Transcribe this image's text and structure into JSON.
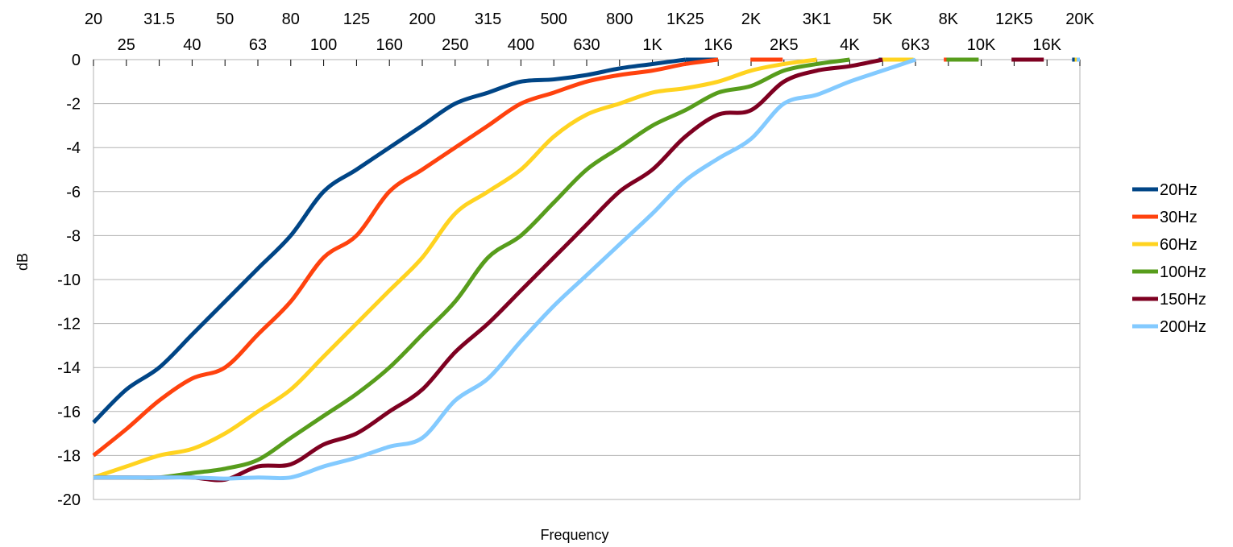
{
  "chart_data": {
    "type": "line",
    "title": "",
    "xlabel": "Frequency",
    "ylabel": "dB",
    "ylim": [
      -20,
      0
    ],
    "yticks": [
      0,
      -2,
      -4,
      -6,
      -8,
      -10,
      -12,
      -14,
      -16,
      -18,
      -20
    ],
    "grid": true,
    "legend_position": "right",
    "categories": [
      "20",
      "25",
      "31.5",
      "40",
      "50",
      "63",
      "80",
      "100",
      "125",
      "160",
      "200",
      "250",
      "315",
      "400",
      "500",
      "630",
      "800",
      "1K",
      "1K25",
      "1K6",
      "2K",
      "2K5",
      "3K1",
      "4K",
      "5K",
      "6K3",
      "8K",
      "10K",
      "12K5",
      "16K",
      "20K"
    ],
    "series": [
      {
        "name": "20Hz",
        "color": "#004586",
        "values": [
          -16.5,
          -15,
          -14,
          -12.5,
          -11,
          -9.5,
          -8,
          -6,
          -5,
          -4,
          -3,
          -2,
          -1.5,
          -1,
          -0.9,
          -0.7,
          -0.4,
          -0.2,
          0,
          0,
          0,
          0,
          0,
          0,
          0,
          0,
          0,
          0,
          0,
          0,
          0
        ]
      },
      {
        "name": "30Hz",
        "color": "#ff420e",
        "values": [
          -18,
          -16.8,
          -15.5,
          -14.5,
          -14,
          -12.5,
          -11,
          -9,
          -8,
          -6,
          -5,
          -4,
          -3,
          -2,
          -1.5,
          -1,
          -0.7,
          -0.5,
          -0.2,
          0,
          0,
          0,
          0,
          0,
          0,
          0,
          0,
          0,
          0,
          0,
          0
        ]
      },
      {
        "name": "60Hz",
        "color": "#ffd320",
        "values": [
          -19,
          -18.5,
          -18,
          -17.7,
          -17,
          -16,
          -15,
          -13.5,
          -12,
          -10.5,
          -9,
          -7,
          -6,
          -5,
          -3.5,
          -2.5,
          -2,
          -1.5,
          -1.3,
          -1,
          -0.5,
          -0.2,
          0,
          0,
          0,
          0,
          0,
          0,
          0,
          0,
          0
        ]
      },
      {
        "name": "100Hz",
        "color": "#579d1c",
        "values": [
          -19,
          -19,
          -19,
          -18.8,
          -18.6,
          -18.2,
          -17.2,
          -16.2,
          -15.2,
          -14,
          -12.5,
          -11,
          -9,
          -8,
          -6.5,
          -5,
          -4,
          -3,
          -2.3,
          -1.5,
          -1.2,
          -0.5,
          -0.2,
          0,
          0,
          0,
          0,
          0,
          0,
          0,
          0
        ]
      },
      {
        "name": "150Hz",
        "color": "#7e0021",
        "values": [
          -19,
          -19,
          -19,
          -19,
          -19.1,
          -18.5,
          -18.4,
          -17.5,
          -17,
          -16,
          -15,
          -13.3,
          -12,
          -10.5,
          -9,
          -7.5,
          -6,
          -5,
          -3.5,
          -2.5,
          -2.3,
          -1,
          -0.5,
          -0.3,
          0,
          0,
          0,
          0,
          0,
          0,
          0
        ]
      },
      {
        "name": "200Hz",
        "color": "#83caff",
        "values": [
          -19,
          -19,
          -19,
          -19,
          -19.05,
          -19,
          -19,
          -18.5,
          -18.1,
          -17.6,
          -17.2,
          -15.5,
          -14.5,
          -12.8,
          -11.2,
          -9.8,
          -8.4,
          -7,
          -5.5,
          -4.5,
          -3.6,
          -2,
          -1.6,
          -1,
          -0.5,
          0,
          0,
          0,
          0,
          0,
          0
        ]
      }
    ]
  }
}
